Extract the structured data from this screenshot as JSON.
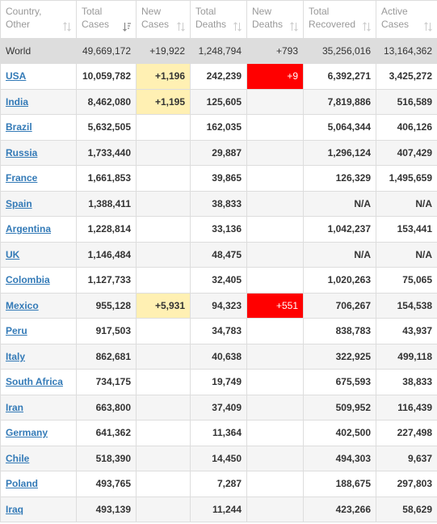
{
  "columns": [
    {
      "label": "Country,\nOther",
      "sort_icon": "sort-both-icon"
    },
    {
      "label": "Total\nCases",
      "sort_icon": "sort-desc-active-icon"
    },
    {
      "label": "New\nCases",
      "sort_icon": "sort-both-icon"
    },
    {
      "label": "Total\nDeaths",
      "sort_icon": "sort-both-icon"
    },
    {
      "label": "New\nDeaths",
      "sort_icon": "sort-both-icon"
    },
    {
      "label": "Total\nRecovered",
      "sort_icon": "sort-both-icon"
    },
    {
      "label": "Active\nCases",
      "sort_icon": "sort-both-icon"
    }
  ],
  "world": {
    "country": "World",
    "total_cases": "49,669,172",
    "new_cases": "+19,922",
    "total_deaths": "1,248,794",
    "new_deaths": "+793",
    "total_recovered": "35,256,016",
    "active_cases": "13,164,362"
  },
  "rows": [
    {
      "country": "USA",
      "total_cases": "10,059,782",
      "new_cases": "+1,196",
      "total_deaths": "242,239",
      "new_deaths": "+9",
      "total_recovered": "6,392,271",
      "active_cases": "3,425,272"
    },
    {
      "country": "India",
      "total_cases": "8,462,080",
      "new_cases": "+1,195",
      "total_deaths": "125,605",
      "new_deaths": "",
      "total_recovered": "7,819,886",
      "active_cases": "516,589"
    },
    {
      "country": "Brazil",
      "total_cases": "5,632,505",
      "new_cases": "",
      "total_deaths": "162,035",
      "new_deaths": "",
      "total_recovered": "5,064,344",
      "active_cases": "406,126"
    },
    {
      "country": "Russia",
      "total_cases": "1,733,440",
      "new_cases": "",
      "total_deaths": "29,887",
      "new_deaths": "",
      "total_recovered": "1,296,124",
      "active_cases": "407,429"
    },
    {
      "country": "France",
      "total_cases": "1,661,853",
      "new_cases": "",
      "total_deaths": "39,865",
      "new_deaths": "",
      "total_recovered": "126,329",
      "active_cases": "1,495,659"
    },
    {
      "country": "Spain",
      "total_cases": "1,388,411",
      "new_cases": "",
      "total_deaths": "38,833",
      "new_deaths": "",
      "total_recovered": "N/A",
      "active_cases": "N/A"
    },
    {
      "country": "Argentina",
      "total_cases": "1,228,814",
      "new_cases": "",
      "total_deaths": "33,136",
      "new_deaths": "",
      "total_recovered": "1,042,237",
      "active_cases": "153,441"
    },
    {
      "country": "UK",
      "total_cases": "1,146,484",
      "new_cases": "",
      "total_deaths": "48,475",
      "new_deaths": "",
      "total_recovered": "N/A",
      "active_cases": "N/A"
    },
    {
      "country": "Colombia",
      "total_cases": "1,127,733",
      "new_cases": "",
      "total_deaths": "32,405",
      "new_deaths": "",
      "total_recovered": "1,020,263",
      "active_cases": "75,065"
    },
    {
      "country": "Mexico",
      "total_cases": "955,128",
      "new_cases": "+5,931",
      "total_deaths": "94,323",
      "new_deaths": "+551",
      "total_recovered": "706,267",
      "active_cases": "154,538"
    },
    {
      "country": "Peru",
      "total_cases": "917,503",
      "new_cases": "",
      "total_deaths": "34,783",
      "new_deaths": "",
      "total_recovered": "838,783",
      "active_cases": "43,937"
    },
    {
      "country": "Italy",
      "total_cases": "862,681",
      "new_cases": "",
      "total_deaths": "40,638",
      "new_deaths": "",
      "total_recovered": "322,925",
      "active_cases": "499,118"
    },
    {
      "country": "South Africa",
      "total_cases": "734,175",
      "new_cases": "",
      "total_deaths": "19,749",
      "new_deaths": "",
      "total_recovered": "675,593",
      "active_cases": "38,833"
    },
    {
      "country": "Iran",
      "total_cases": "663,800",
      "new_cases": "",
      "total_deaths": "37,409",
      "new_deaths": "",
      "total_recovered": "509,952",
      "active_cases": "116,439"
    },
    {
      "country": "Germany",
      "total_cases": "641,362",
      "new_cases": "",
      "total_deaths": "11,364",
      "new_deaths": "",
      "total_recovered": "402,500",
      "active_cases": "227,498"
    },
    {
      "country": "Chile",
      "total_cases": "518,390",
      "new_cases": "",
      "total_deaths": "14,450",
      "new_deaths": "",
      "total_recovered": "494,303",
      "active_cases": "9,637"
    },
    {
      "country": "Poland",
      "total_cases": "493,765",
      "new_cases": "",
      "total_deaths": "7,287",
      "new_deaths": "",
      "total_recovered": "188,675",
      "active_cases": "297,803"
    },
    {
      "country": "Iraq",
      "total_cases": "493,139",
      "new_cases": "",
      "total_deaths": "11,244",
      "new_deaths": "",
      "total_recovered": "423,266",
      "active_cases": "58,629"
    }
  ],
  "colors": {
    "new_cases_bg": "#fff0b3",
    "new_deaths_bg": "#ff0000",
    "link": "#337ab7",
    "world_bg": "#dddddd"
  }
}
